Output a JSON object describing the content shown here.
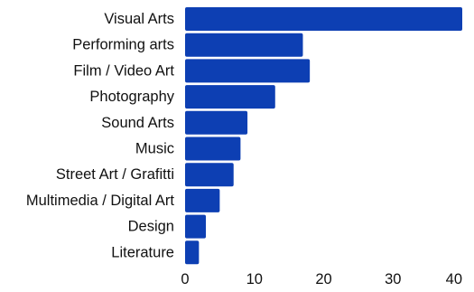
{
  "chart_data": {
    "type": "bar",
    "orientation": "horizontal",
    "categories": [
      "Visual Arts",
      "Performing arts",
      "Film / Video Art",
      "Photography",
      "Sound Arts",
      "Music",
      "Street Art / Grafitti",
      "Multimedia / Digital Art",
      "Design",
      "Literature"
    ],
    "values": [
      40,
      17,
      18,
      13,
      9,
      8,
      7,
      5,
      3,
      2
    ],
    "xticks": [
      0,
      10,
      20,
      30,
      40
    ],
    "xlim": [
      0,
      40
    ],
    "grid": false,
    "bar_color": "#0d3fb3",
    "title": "",
    "xlabel": "",
    "ylabel": ""
  }
}
